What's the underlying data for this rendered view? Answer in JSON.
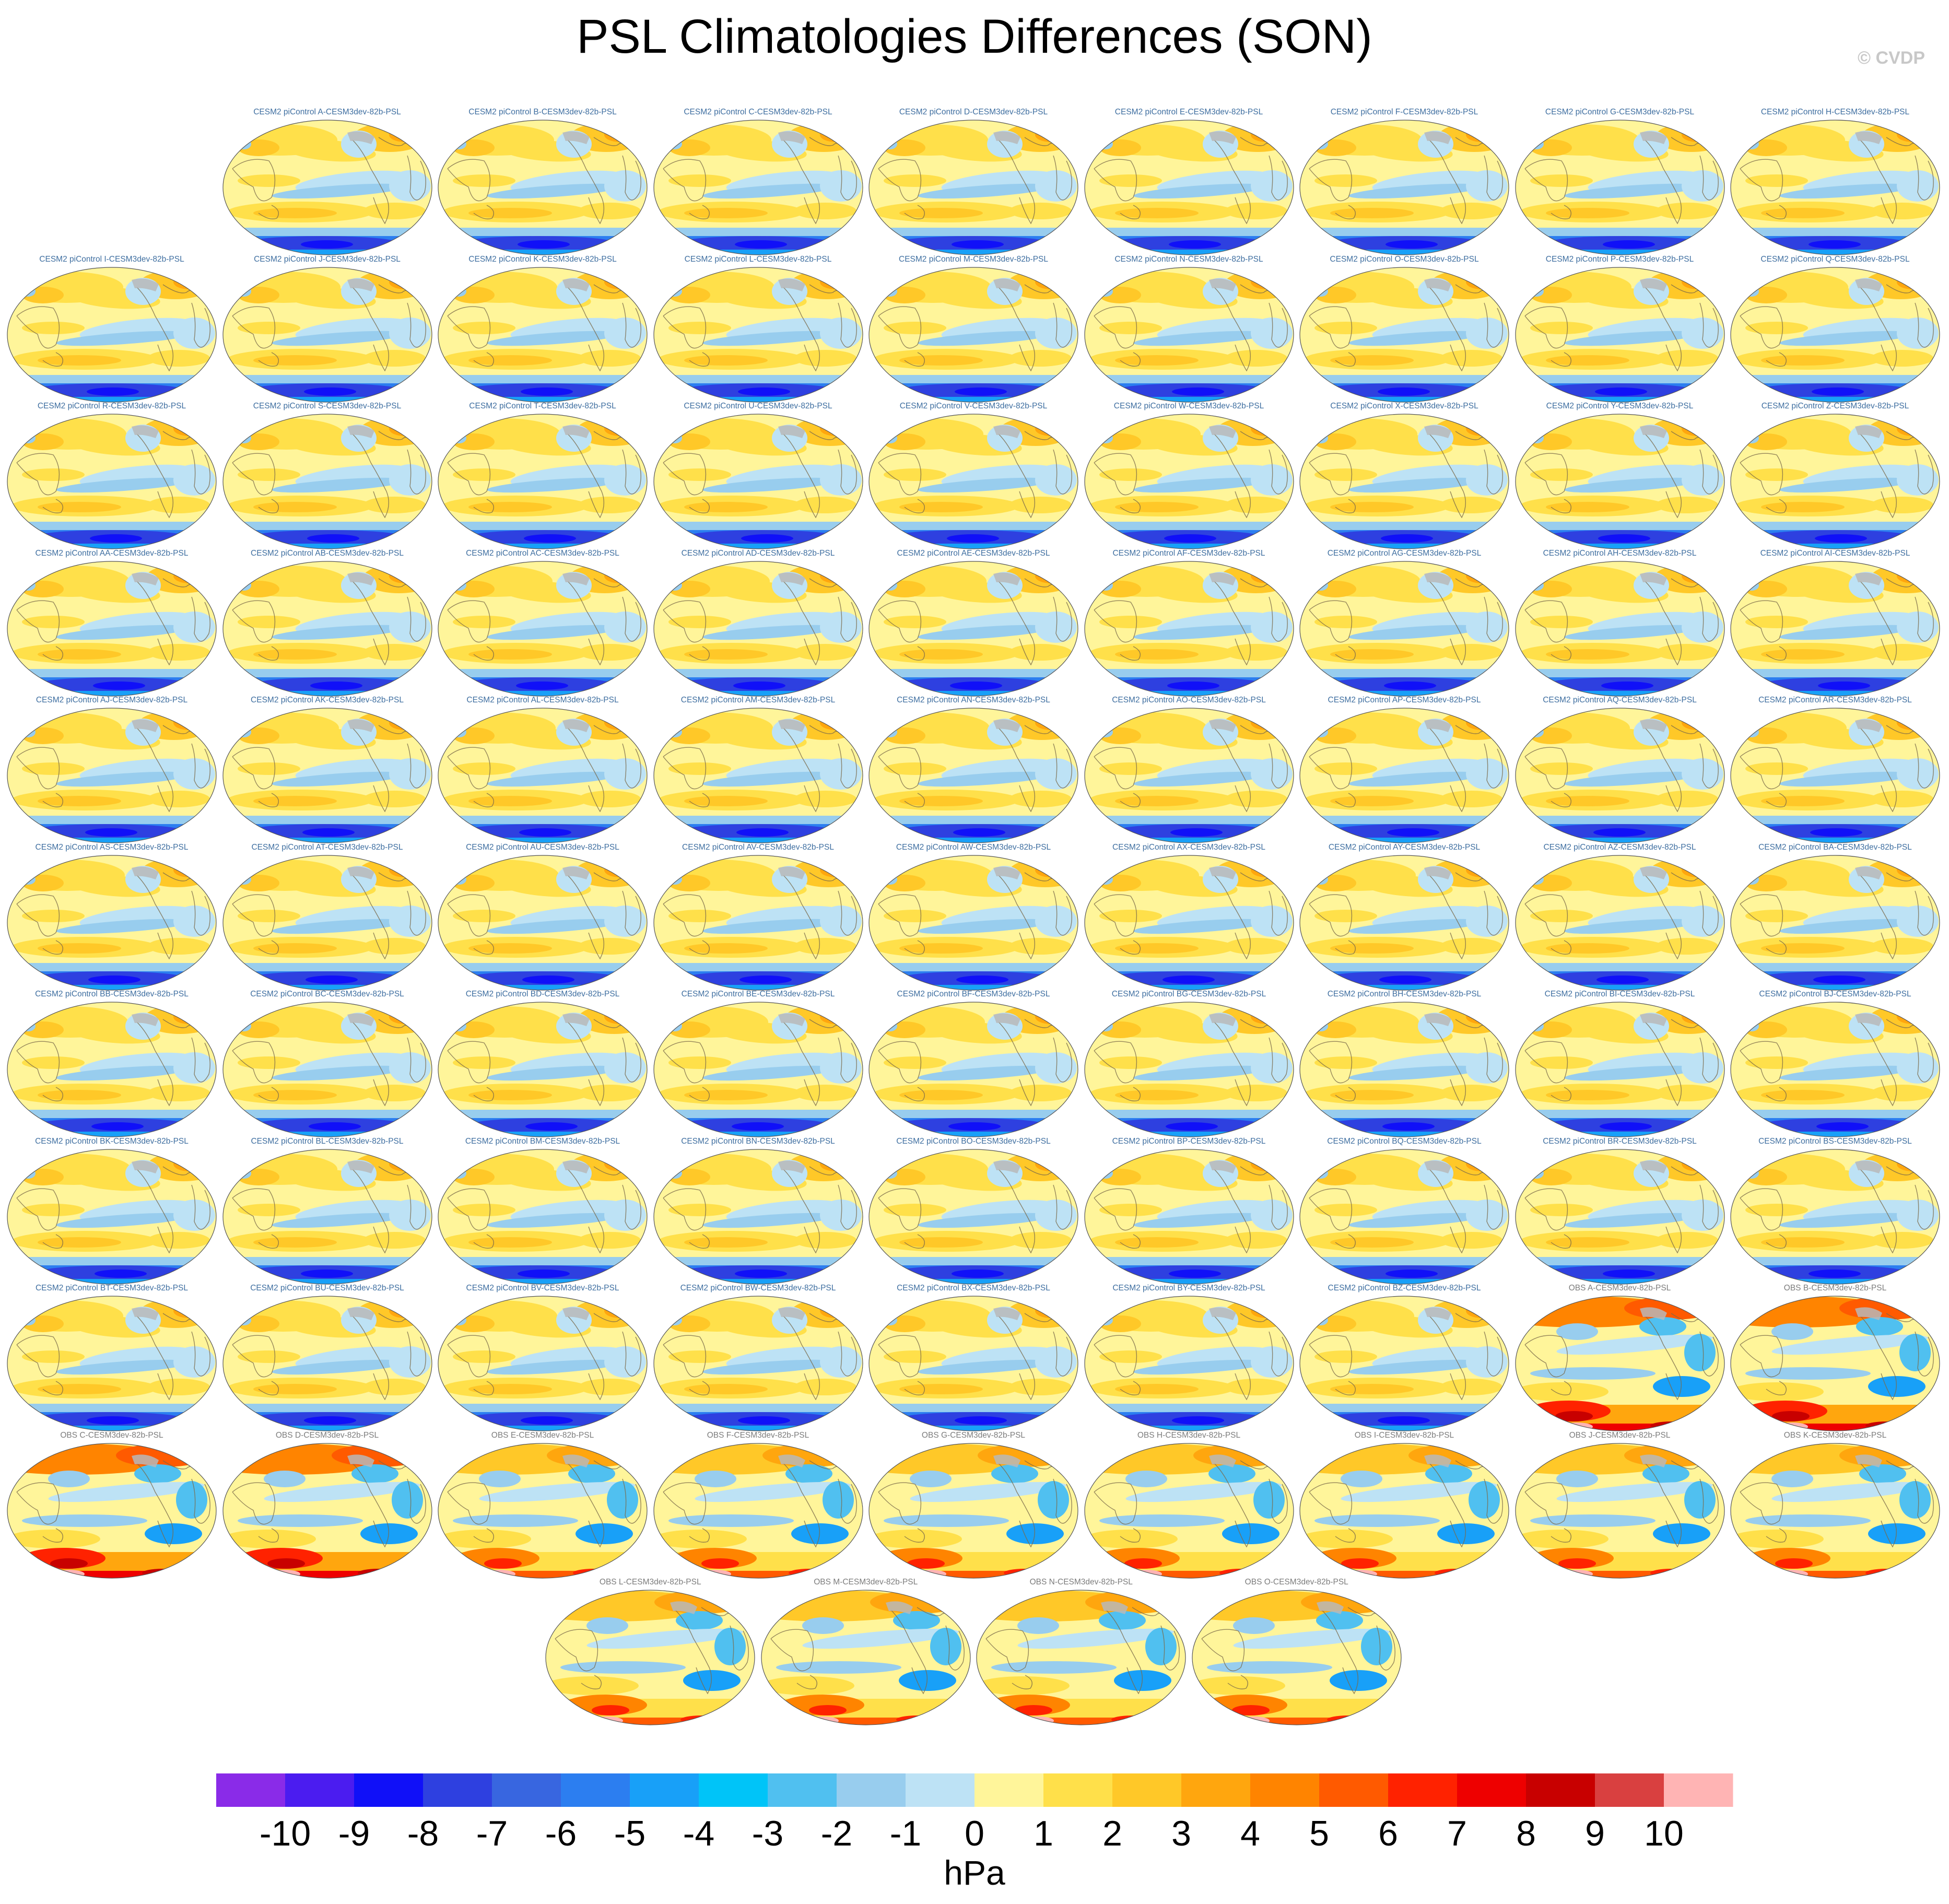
{
  "title": "PSL Climatologies Differences (SON)",
  "watermark": "© CVDP",
  "colorbar": {
    "unit": "hPa",
    "levels": [
      -10,
      -9,
      -8,
      -7,
      -6,
      -5,
      -4,
      -3,
      -2,
      -1,
      0,
      1,
      2,
      3,
      4,
      5,
      6,
      7,
      8,
      9,
      10
    ],
    "tick_labels": [
      "-10",
      "-9",
      "-8",
      "-7",
      "-6",
      "-5",
      "-4",
      "-3",
      "-2",
      "-1",
      "0",
      "1",
      "2",
      "3",
      "4",
      "5",
      "6",
      "7",
      "8",
      "9",
      "10"
    ],
    "colors": [
      "#8a2be8",
      "#4b1cf0",
      "#1010f8",
      "#2e40e0",
      "#3866e0",
      "#2c7ef0",
      "#18a0f8",
      "#00c4f8",
      "#50c0f0",
      "#98cdee",
      "#bde2f5",
      "#fff59a",
      "#ffe04a",
      "#ffc828",
      "#ffa60e",
      "#ff8400",
      "#ff5a00",
      "#ff2200",
      "#ee0000",
      "#c80000",
      "#d94040",
      "#ffb4b4"
    ]
  },
  "chart_data": {
    "type": "heatmap",
    "title": "PSL Climatologies Differences (SON)",
    "variable": "PSL",
    "season": "SON",
    "unit": "hPa",
    "panels": [
      {
        "title": "CESM2 piControl A-CESM3dev-82b-PSL",
        "kind": "model",
        "row": 0,
        "col": 1
      },
      {
        "title": "CESM2 piControl B-CESM3dev-82b-PSL",
        "kind": "model",
        "row": 0,
        "col": 2
      },
      {
        "title": "CESM2 piControl C-CESM3dev-82b-PSL",
        "kind": "model",
        "row": 0,
        "col": 3
      },
      {
        "title": "CESM2 piControl D-CESM3dev-82b-PSL",
        "kind": "model",
        "row": 0,
        "col": 4
      },
      {
        "title": "CESM2 piControl E-CESM3dev-82b-PSL",
        "kind": "model",
        "row": 0,
        "col": 5
      },
      {
        "title": "CESM2 piControl F-CESM3dev-82b-PSL",
        "kind": "model",
        "row": 0,
        "col": 6
      },
      {
        "title": "CESM2 piControl G-CESM3dev-82b-PSL",
        "kind": "model",
        "row": 0,
        "col": 7
      },
      {
        "title": "CESM2 piControl H-CESM3dev-82b-PSL",
        "kind": "model",
        "row": 0,
        "col": 8
      },
      {
        "title": "CESM2 piControl I-CESM3dev-82b-PSL",
        "kind": "model",
        "row": 1,
        "col": 0
      },
      {
        "title": "CESM2 piControl J-CESM3dev-82b-PSL",
        "kind": "model",
        "row": 1,
        "col": 1
      },
      {
        "title": "CESM2 piControl K-CESM3dev-82b-PSL",
        "kind": "model",
        "row": 1,
        "col": 2
      },
      {
        "title": "CESM2 piControl L-CESM3dev-82b-PSL",
        "kind": "model",
        "row": 1,
        "col": 3
      },
      {
        "title": "CESM2 piControl M-CESM3dev-82b-PSL",
        "kind": "model",
        "row": 1,
        "col": 4
      },
      {
        "title": "CESM2 piControl N-CESM3dev-82b-PSL",
        "kind": "model",
        "row": 1,
        "col": 5
      },
      {
        "title": "CESM2 piControl O-CESM3dev-82b-PSL",
        "kind": "model",
        "row": 1,
        "col": 6
      },
      {
        "title": "CESM2 piControl P-CESM3dev-82b-PSL",
        "kind": "model",
        "row": 1,
        "col": 7
      },
      {
        "title": "CESM2 piControl Q-CESM3dev-82b-PSL",
        "kind": "model",
        "row": 1,
        "col": 8
      },
      {
        "title": "CESM2 piControl R-CESM3dev-82b-PSL",
        "kind": "model",
        "row": 2,
        "col": 0
      },
      {
        "title": "CESM2 piControl S-CESM3dev-82b-PSL",
        "kind": "model",
        "row": 2,
        "col": 1
      },
      {
        "title": "CESM2 piControl T-CESM3dev-82b-PSL",
        "kind": "model",
        "row": 2,
        "col": 2
      },
      {
        "title": "CESM2 piControl U-CESM3dev-82b-PSL",
        "kind": "model",
        "row": 2,
        "col": 3
      },
      {
        "title": "CESM2 piControl V-CESM3dev-82b-PSL",
        "kind": "model",
        "row": 2,
        "col": 4
      },
      {
        "title": "CESM2 piControl W-CESM3dev-82b-PSL",
        "kind": "model",
        "row": 2,
        "col": 5
      },
      {
        "title": "CESM2 piControl X-CESM3dev-82b-PSL",
        "kind": "model",
        "row": 2,
        "col": 6
      },
      {
        "title": "CESM2 piControl Y-CESM3dev-82b-PSL",
        "kind": "model",
        "row": 2,
        "col": 7
      },
      {
        "title": "CESM2 piControl Z-CESM3dev-82b-PSL",
        "kind": "model",
        "row": 2,
        "col": 8
      },
      {
        "title": "CESM2 piControl AA-CESM3dev-82b-PSL",
        "kind": "model",
        "row": 3,
        "col": 0
      },
      {
        "title": "CESM2 piControl AB-CESM3dev-82b-PSL",
        "kind": "model",
        "row": 3,
        "col": 1
      },
      {
        "title": "CESM2 piControl AC-CESM3dev-82b-PSL",
        "kind": "model",
        "row": 3,
        "col": 2
      },
      {
        "title": "CESM2 piControl AD-CESM3dev-82b-PSL",
        "kind": "model",
        "row": 3,
        "col": 3
      },
      {
        "title": "CESM2 piControl AE-CESM3dev-82b-PSL",
        "kind": "model",
        "row": 3,
        "col": 4
      },
      {
        "title": "CESM2 piControl AF-CESM3dev-82b-PSL",
        "kind": "model",
        "row": 3,
        "col": 5
      },
      {
        "title": "CESM2 piControl AG-CESM3dev-82b-PSL",
        "kind": "model",
        "row": 3,
        "col": 6
      },
      {
        "title": "CESM2 piControl AH-CESM3dev-82b-PSL",
        "kind": "model",
        "row": 3,
        "col": 7
      },
      {
        "title": "CESM2 piControl AI-CESM3dev-82b-PSL",
        "kind": "model",
        "row": 3,
        "col": 8
      },
      {
        "title": "CESM2 piControl AJ-CESM3dev-82b-PSL",
        "kind": "model",
        "row": 4,
        "col": 0
      },
      {
        "title": "CESM2 piControl AK-CESM3dev-82b-PSL",
        "kind": "model",
        "row": 4,
        "col": 1
      },
      {
        "title": "CESM2 piControl AL-CESM3dev-82b-PSL",
        "kind": "model",
        "row": 4,
        "col": 2
      },
      {
        "title": "CESM2 piControl AM-CESM3dev-82b-PSL",
        "kind": "model",
        "row": 4,
        "col": 3
      },
      {
        "title": "CESM2 piControl AN-CESM3dev-82b-PSL",
        "kind": "model",
        "row": 4,
        "col": 4
      },
      {
        "title": "CESM2 piControl AO-CESM3dev-82b-PSL",
        "kind": "model",
        "row": 4,
        "col": 5
      },
      {
        "title": "CESM2 piControl AP-CESM3dev-82b-PSL",
        "kind": "model",
        "row": 4,
        "col": 6
      },
      {
        "title": "CESM2 piControl AQ-CESM3dev-82b-PSL",
        "kind": "model",
        "row": 4,
        "col": 7
      },
      {
        "title": "CESM2 piControl AR-CESM3dev-82b-PSL",
        "kind": "model",
        "row": 4,
        "col": 8
      },
      {
        "title": "CESM2 piControl AS-CESM3dev-82b-PSL",
        "kind": "model",
        "row": 5,
        "col": 0
      },
      {
        "title": "CESM2 piControl AT-CESM3dev-82b-PSL",
        "kind": "model",
        "row": 5,
        "col": 1
      },
      {
        "title": "CESM2 piControl AU-CESM3dev-82b-PSL",
        "kind": "model",
        "row": 5,
        "col": 2
      },
      {
        "title": "CESM2 piControl AV-CESM3dev-82b-PSL",
        "kind": "model",
        "row": 5,
        "col": 3
      },
      {
        "title": "CESM2 piControl AW-CESM3dev-82b-PSL",
        "kind": "model",
        "row": 5,
        "col": 4
      },
      {
        "title": "CESM2 piControl AX-CESM3dev-82b-PSL",
        "kind": "model",
        "row": 5,
        "col": 5
      },
      {
        "title": "CESM2 piControl AY-CESM3dev-82b-PSL",
        "kind": "model",
        "row": 5,
        "col": 6
      },
      {
        "title": "CESM2 piControl AZ-CESM3dev-82b-PSL",
        "kind": "model",
        "row": 5,
        "col": 7
      },
      {
        "title": "CESM2 piControl BA-CESM3dev-82b-PSL",
        "kind": "model",
        "row": 5,
        "col": 8
      },
      {
        "title": "CESM2 piControl BB-CESM3dev-82b-PSL",
        "kind": "model",
        "row": 6,
        "col": 0
      },
      {
        "title": "CESM2 piControl BC-CESM3dev-82b-PSL",
        "kind": "model",
        "row": 6,
        "col": 1
      },
      {
        "title": "CESM2 piControl BD-CESM3dev-82b-PSL",
        "kind": "model",
        "row": 6,
        "col": 2
      },
      {
        "title": "CESM2 piControl BE-CESM3dev-82b-PSL",
        "kind": "model",
        "row": 6,
        "col": 3
      },
      {
        "title": "CESM2 piControl BF-CESM3dev-82b-PSL",
        "kind": "model",
        "row": 6,
        "col": 4
      },
      {
        "title": "CESM2 piControl BG-CESM3dev-82b-PSL",
        "kind": "model",
        "row": 6,
        "col": 5
      },
      {
        "title": "CESM2 piControl BH-CESM3dev-82b-PSL",
        "kind": "model",
        "row": 6,
        "col": 6
      },
      {
        "title": "CESM2 piControl BI-CESM3dev-82b-PSL",
        "kind": "model",
        "row": 6,
        "col": 7
      },
      {
        "title": "CESM2 piControl BJ-CESM3dev-82b-PSL",
        "kind": "model",
        "row": 6,
        "col": 8
      },
      {
        "title": "CESM2 piControl BK-CESM3dev-82b-PSL",
        "kind": "model",
        "row": 7,
        "col": 0
      },
      {
        "title": "CESM2 piControl BL-CESM3dev-82b-PSL",
        "kind": "model",
        "row": 7,
        "col": 1
      },
      {
        "title": "CESM2 piControl BM-CESM3dev-82b-PSL",
        "kind": "model",
        "row": 7,
        "col": 2
      },
      {
        "title": "CESM2 piControl BN-CESM3dev-82b-PSL",
        "kind": "model",
        "row": 7,
        "col": 3
      },
      {
        "title": "CESM2 piControl BO-CESM3dev-82b-PSL",
        "kind": "model",
        "row": 7,
        "col": 4
      },
      {
        "title": "CESM2 piControl BP-CESM3dev-82b-PSL",
        "kind": "model",
        "row": 7,
        "col": 5
      },
      {
        "title": "CESM2 piControl BQ-CESM3dev-82b-PSL",
        "kind": "model",
        "row": 7,
        "col": 6
      },
      {
        "title": "CESM2 piControl BR-CESM3dev-82b-PSL",
        "kind": "model",
        "row": 7,
        "col": 7
      },
      {
        "title": "CESM2 piControl BS-CESM3dev-82b-PSL",
        "kind": "model",
        "row": 7,
        "col": 8
      },
      {
        "title": "CESM2 piControl BT-CESM3dev-82b-PSL",
        "kind": "model",
        "row": 8,
        "col": 0
      },
      {
        "title": "CESM2 piControl BU-CESM3dev-82b-PSL",
        "kind": "model",
        "row": 8,
        "col": 1
      },
      {
        "title": "CESM2 piControl BV-CESM3dev-82b-PSL",
        "kind": "model",
        "row": 8,
        "col": 2
      },
      {
        "title": "CESM2 piControl BW-CESM3dev-82b-PSL",
        "kind": "model",
        "row": 8,
        "col": 3
      },
      {
        "title": "CESM2 piControl BX-CESM3dev-82b-PSL",
        "kind": "model",
        "row": 8,
        "col": 4
      },
      {
        "title": "CESM2 piControl BY-CESM3dev-82b-PSL",
        "kind": "model",
        "row": 8,
        "col": 5
      },
      {
        "title": "CESM2 piControl BZ-CESM3dev-82b-PSL",
        "kind": "model",
        "row": 8,
        "col": 6
      },
      {
        "title": "OBS A-CESM3dev-82b-PSL",
        "kind": "obs",
        "row": 8,
        "col": 7
      },
      {
        "title": "OBS B-CESM3dev-82b-PSL",
        "kind": "obs",
        "row": 8,
        "col": 8
      },
      {
        "title": "OBS C-CESM3dev-82b-PSL",
        "kind": "obs",
        "row": 9,
        "col": 0
      },
      {
        "title": "OBS D-CESM3dev-82b-PSL",
        "kind": "obs",
        "row": 9,
        "col": 1
      },
      {
        "title": "OBS E-CESM3dev-82b-PSL",
        "kind": "obs",
        "row": 9,
        "col": 2
      },
      {
        "title": "OBS F-CESM3dev-82b-PSL",
        "kind": "obs",
        "row": 9,
        "col": 3
      },
      {
        "title": "OBS G-CESM3dev-82b-PSL",
        "kind": "obs",
        "row": 9,
        "col": 4
      },
      {
        "title": "OBS H-CESM3dev-82b-PSL",
        "kind": "obs",
        "row": 9,
        "col": 5
      },
      {
        "title": "OBS I-CESM3dev-82b-PSL",
        "kind": "obs",
        "row": 9,
        "col": 6
      },
      {
        "title": "OBS J-CESM3dev-82b-PSL",
        "kind": "obs",
        "row": 9,
        "col": 7
      },
      {
        "title": "OBS K-CESM3dev-82b-PSL",
        "kind": "obs",
        "row": 9,
        "col": 8
      },
      {
        "title": "OBS L-CESM3dev-82b-PSL",
        "kind": "obs",
        "row": 10,
        "col": 2.5
      },
      {
        "title": "OBS M-CESM3dev-82b-PSL",
        "kind": "obs",
        "row": 10,
        "col": 3.5
      },
      {
        "title": "OBS N-CESM3dev-82b-PSL",
        "kind": "obs",
        "row": 10,
        "col": 4.5
      },
      {
        "title": "OBS O-CESM3dev-82b-PSL",
        "kind": "obs",
        "row": 10,
        "col": 5.5
      }
    ]
  }
}
